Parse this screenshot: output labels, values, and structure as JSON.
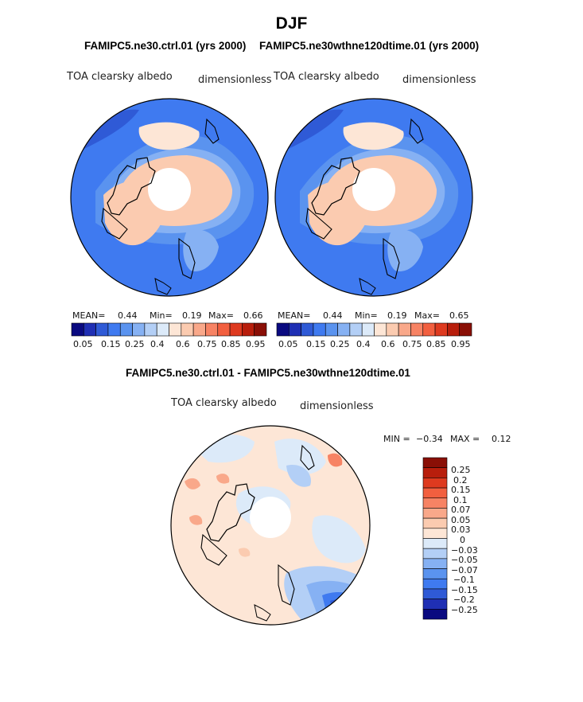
{
  "page": {
    "title": "DJF",
    "panel_left": {
      "case_label": "FAMIPC5.ne30.ctrl.01 (yrs 2000)",
      "variable": "TOA clearsky albedo",
      "units": "dimensionless",
      "mean_label": "MEAN=",
      "mean": "0.44",
      "min_label": "Min=",
      "min": "0.19",
      "max_label": "Max=",
      "max": "0.66"
    },
    "panel_right": {
      "case_label": "FAMIPC5.ne30wthne120dtime.01 (yrs 2000)",
      "variable": "TOA clearsky albedo",
      "units": "dimensionless",
      "mean_label": "MEAN=",
      "mean": "0.44",
      "min_label": "Min=",
      "min": "0.19",
      "max_label": "Max=",
      "max": "0.65"
    },
    "panel_diff": {
      "title": "FAMIPC5.ne30.ctrl.01 - FAMIPC5.ne30wthne120dtime.01",
      "variable": "TOA clearsky albedo",
      "units": "dimensionless",
      "min_label": "MIN =",
      "min": "−0.34",
      "max_label": "MAX =",
      "max": "0.12"
    }
  },
  "chart_data": [
    {
      "type": "heatmap",
      "projection": "north-polar-stereographic",
      "title": "FAMIPC5.ne30.ctrl.01 (yrs 2000)",
      "variable": "TOA clearsky albedo",
      "units": "dimensionless",
      "stats": {
        "mean": 0.44,
        "min": 0.19,
        "max": 0.66
      },
      "colorbar": {
        "levels": [
          0.05,
          0.1,
          0.15,
          0.2,
          0.25,
          0.3,
          0.4,
          0.5,
          0.6,
          0.7,
          0.75,
          0.8,
          0.85,
          0.9,
          0.95
        ],
        "tick_labels": [
          "0.05",
          "0.15",
          "0.25",
          "0.4",
          "0.6",
          "0.75",
          "0.85",
          "0.95"
        ],
        "colors": [
          "#0a0a80",
          "#1f2fb4",
          "#2f5ad6",
          "#3f7af0",
          "#5a93ef",
          "#86b1f3",
          "#b3cff6",
          "#dceaf9",
          "#fde6d6",
          "#fbcbb0",
          "#f9a88a",
          "#f78364",
          "#f25f3f",
          "#de3a1f",
          "#b81e0c",
          "#8a0f06"
        ]
      }
    },
    {
      "type": "heatmap",
      "projection": "north-polar-stereographic",
      "title": "FAMIPC5.ne30wthne120dtime.01 (yrs 2000)",
      "variable": "TOA clearsky albedo",
      "units": "dimensionless",
      "stats": {
        "mean": 0.44,
        "min": 0.19,
        "max": 0.65
      },
      "colorbar": {
        "levels": [
          0.05,
          0.1,
          0.15,
          0.2,
          0.25,
          0.3,
          0.4,
          0.5,
          0.6,
          0.7,
          0.75,
          0.8,
          0.85,
          0.9,
          0.95
        ],
        "tick_labels": [
          "0.05",
          "0.15",
          "0.25",
          "0.4",
          "0.6",
          "0.75",
          "0.85",
          "0.95"
        ],
        "colors": [
          "#0a0a80",
          "#1f2fb4",
          "#2f5ad6",
          "#3f7af0",
          "#5a93ef",
          "#86b1f3",
          "#b3cff6",
          "#dceaf9",
          "#fde6d6",
          "#fbcbb0",
          "#f9a88a",
          "#f78364",
          "#f25f3f",
          "#de3a1f",
          "#b81e0c",
          "#8a0f06"
        ]
      }
    },
    {
      "type": "heatmap",
      "projection": "north-polar-stereographic",
      "title": "FAMIPC5.ne30.ctrl.01 - FAMIPC5.ne30wthne120dtime.01",
      "variable": "TOA clearsky albedo",
      "units": "dimensionless",
      "stats": {
        "min": -0.34,
        "max": 0.12
      },
      "colorbar": {
        "tick_labels": [
          "0.25",
          "0.2",
          "0.15",
          "0.1",
          "0.07",
          "0.05",
          "0.03",
          "0",
          "−0.03",
          "−0.05",
          "−0.07",
          "−0.1",
          "−0.15",
          "−0.2",
          "−0.25"
        ],
        "colors": [
          "#8a0f06",
          "#b81e0c",
          "#de3a1f",
          "#f25f3f",
          "#f78364",
          "#f9a88a",
          "#fbcbb0",
          "#fde6d6",
          "#dceaf9",
          "#b3cff6",
          "#86b1f3",
          "#5a93ef",
          "#3f7af0",
          "#2f5ad6",
          "#1f2fb4",
          "#0a0a80"
        ]
      }
    }
  ]
}
